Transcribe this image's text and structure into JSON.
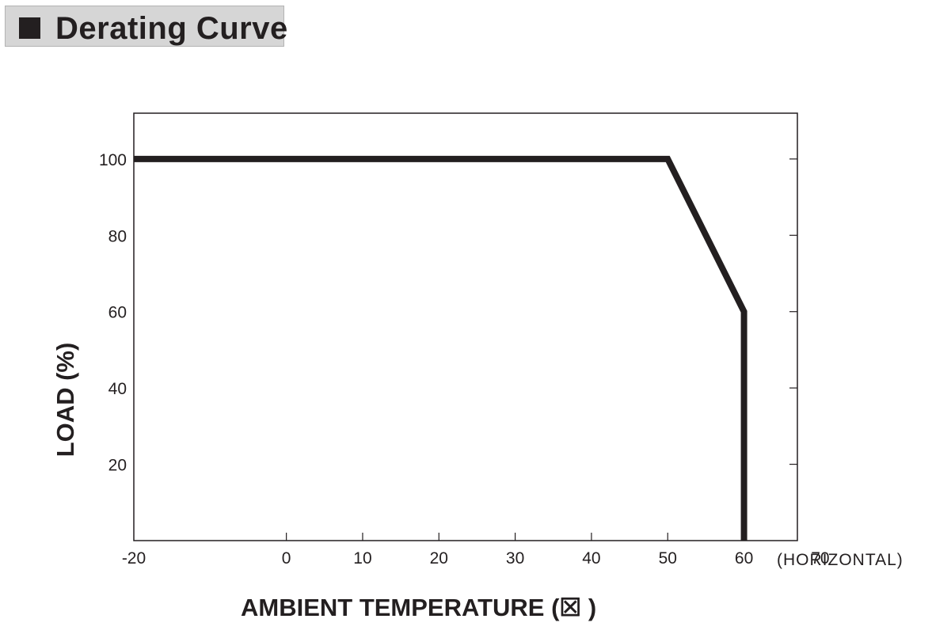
{
  "title": "Derating Curve",
  "chart_data": {
    "type": "line",
    "xlabel": "AMBIENT TEMPERATURE (☒ )",
    "ylabel": "LOAD (%)",
    "x_note": "(HORIZONTAL)",
    "xlim": [
      -20,
      67
    ],
    "ylim": [
      0,
      112
    ],
    "xticks": [
      -20,
      0,
      10,
      20,
      30,
      40,
      50,
      60,
      70
    ],
    "yticks": [
      20,
      40,
      60,
      80,
      100
    ],
    "grid": false,
    "series": [
      {
        "x": [
          -20,
          50,
          60,
          60
        ],
        "y": [
          100,
          100,
          60,
          0
        ]
      }
    ],
    "colors": {
      "line": "#231f20",
      "frame": "#231f20",
      "title_bg": "#d6d6d6"
    }
  }
}
